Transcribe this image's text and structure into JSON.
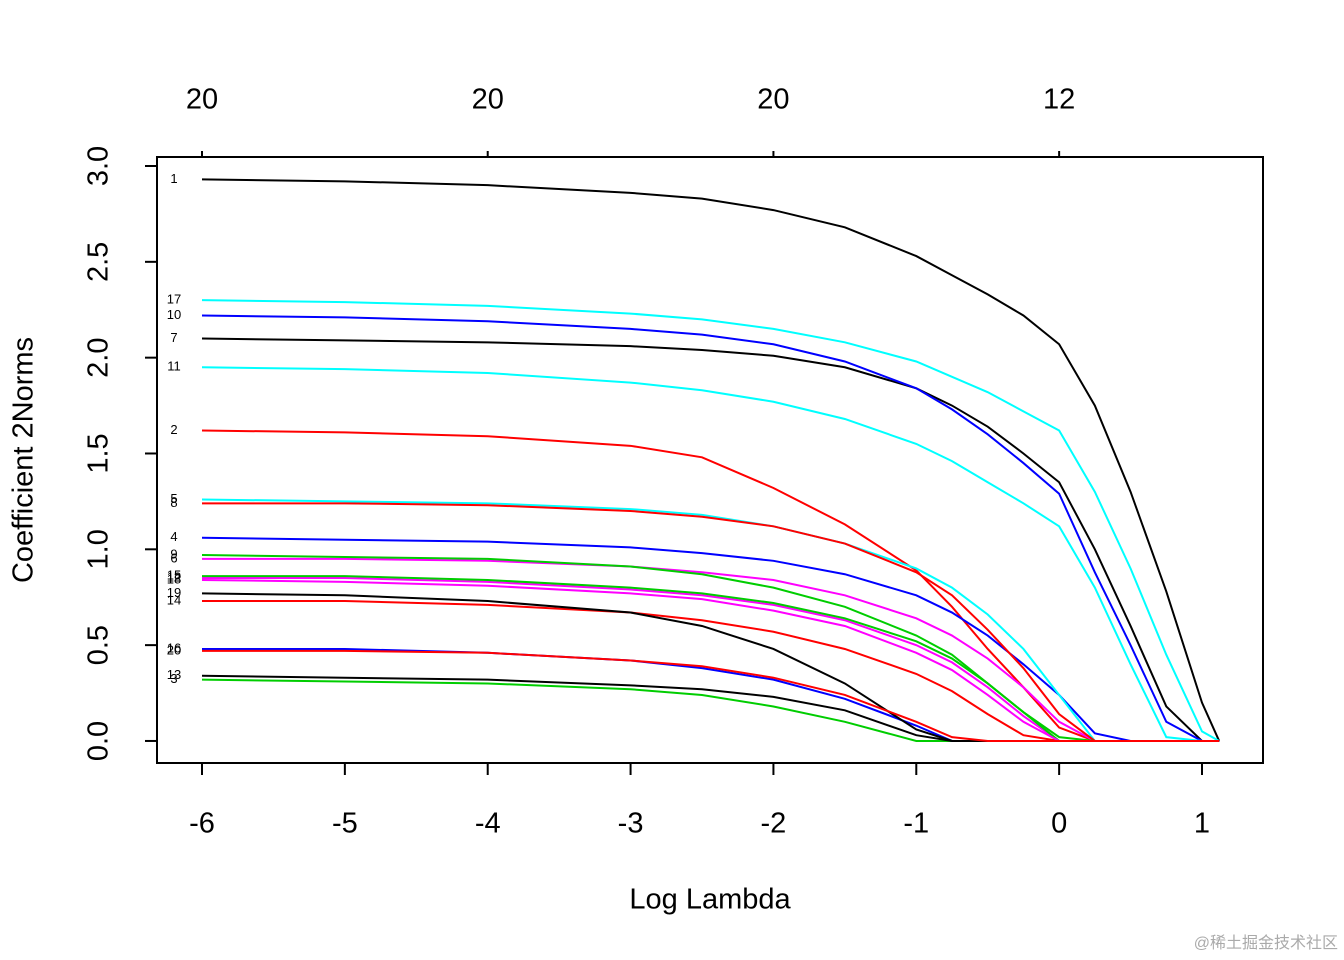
{
  "chart_data": {
    "type": "line",
    "xlabel": "Log Lambda",
    "ylabel": "Coefficient 2Norms",
    "x": [
      -6,
      -5,
      -4,
      -3,
      -2.5,
      -2,
      -1.5,
      -1,
      -0.75,
      -0.5,
      -0.25,
      0,
      0.25,
      0.5,
      0.75,
      1,
      1.12
    ],
    "xlim": [
      -6.315,
      1.427
    ],
    "ylim": [
      -0.115,
      3.047
    ],
    "xticks": [
      -6,
      -5,
      -4,
      -3,
      -2,
      -1,
      0,
      1
    ],
    "yticks": [
      {
        "value": 0,
        "label": "0.0"
      },
      0.5,
      {
        "value": 1,
        "label": "1.0"
      },
      1.5,
      {
        "value": 2,
        "label": "2.0"
      },
      2.5,
      {
        "value": 3,
        "label": "3.0"
      }
    ],
    "top_ticks": [
      {
        "value": -6,
        "label": "20"
      },
      {
        "value": -4,
        "label": "20"
      },
      {
        "value": -2,
        "label": "20"
      },
      {
        "value": 0,
        "label": "12"
      }
    ],
    "series": [
      {
        "name": "1",
        "color": "#000000",
        "values": [
          2.93,
          2.92,
          2.9,
          2.86,
          2.83,
          2.77,
          2.68,
          2.53,
          2.43,
          2.33,
          2.22,
          2.07,
          1.75,
          1.3,
          0.78,
          0.2,
          0
        ]
      },
      {
        "name": "2",
        "color": "#ff0000",
        "values": [
          1.62,
          1.61,
          1.59,
          1.54,
          1.48,
          1.32,
          1.13,
          0.89,
          0.7,
          0.48,
          0.28,
          0.07,
          0,
          0,
          0,
          0,
          0
        ]
      },
      {
        "name": "3",
        "color": "#00cd00",
        "values": [
          0.32,
          0.31,
          0.3,
          0.27,
          0.24,
          0.18,
          0.1,
          0,
          0,
          0,
          0,
          0,
          0,
          0,
          0,
          0,
          0
        ]
      },
      {
        "name": "4",
        "color": "#0000ff",
        "values": [
          1.06,
          1.05,
          1.04,
          1.01,
          0.98,
          0.94,
          0.87,
          0.76,
          0.67,
          0.55,
          0.4,
          0.24,
          0.04,
          0,
          0,
          0,
          0
        ]
      },
      {
        "name": "5",
        "color": "#00ffff",
        "values": [
          1.26,
          1.25,
          1.24,
          1.21,
          1.18,
          1.12,
          1.03,
          0.9,
          0.8,
          0.66,
          0.48,
          0.24,
          0,
          0,
          0,
          0,
          0
        ]
      },
      {
        "name": "6",
        "color": "#ff00ff",
        "values": [
          0.95,
          0.95,
          0.94,
          0.91,
          0.88,
          0.84,
          0.76,
          0.64,
          0.55,
          0.43,
          0.28,
          0.1,
          0,
          0,
          0,
          0,
          0
        ]
      },
      {
        "name": "7",
        "color": "#000000",
        "values": [
          2.1,
          2.09,
          2.08,
          2.06,
          2.04,
          2.01,
          1.95,
          1.84,
          1.75,
          1.64,
          1.5,
          1.35,
          1.0,
          0.6,
          0.18,
          0,
          0
        ]
      },
      {
        "name": "8",
        "color": "#ff0000",
        "values": [
          1.24,
          1.24,
          1.23,
          1.2,
          1.17,
          1.12,
          1.03,
          0.88,
          0.76,
          0.58,
          0.38,
          0.14,
          0,
          0,
          0,
          0,
          0
        ]
      },
      {
        "name": "9",
        "color": "#00cd00",
        "values": [
          0.97,
          0.96,
          0.95,
          0.91,
          0.87,
          0.8,
          0.7,
          0.55,
          0.45,
          0.3,
          0.15,
          0.02,
          0,
          0,
          0,
          0,
          0
        ]
      },
      {
        "name": "10",
        "color": "#0000ff",
        "values": [
          2.22,
          2.21,
          2.19,
          2.15,
          2.12,
          2.07,
          1.98,
          1.84,
          1.73,
          1.6,
          1.45,
          1.29,
          0.88,
          0.5,
          0.1,
          0,
          0
        ]
      },
      {
        "name": "11",
        "color": "#00ffff",
        "values": [
          1.95,
          1.94,
          1.92,
          1.87,
          1.83,
          1.77,
          1.68,
          1.55,
          1.46,
          1.35,
          1.24,
          1.12,
          0.8,
          0.4,
          0.02,
          0,
          0
        ]
      },
      {
        "name": "12",
        "color": "#ff00ff",
        "values": [
          0.85,
          0.85,
          0.83,
          0.79,
          0.76,
          0.71,
          0.63,
          0.5,
          0.41,
          0.28,
          0.13,
          0,
          0,
          0,
          0,
          0,
          0
        ]
      },
      {
        "name": "13",
        "color": "#000000",
        "values": [
          0.34,
          0.33,
          0.32,
          0.29,
          0.27,
          0.23,
          0.16,
          0.03,
          0,
          0,
          0,
          0,
          0,
          0,
          0,
          0,
          0
        ]
      },
      {
        "name": "14",
        "color": "#ff0000",
        "values": [
          0.73,
          0.73,
          0.71,
          0.67,
          0.63,
          0.57,
          0.48,
          0.35,
          0.26,
          0.14,
          0.03,
          0,
          0,
          0,
          0,
          0,
          0
        ]
      },
      {
        "name": "15",
        "color": "#00cd00",
        "values": [
          0.86,
          0.86,
          0.84,
          0.8,
          0.77,
          0.72,
          0.64,
          0.52,
          0.43,
          0.3,
          0.15,
          0,
          0,
          0,
          0,
          0,
          0
        ]
      },
      {
        "name": "16",
        "color": "#0000ff",
        "values": [
          0.48,
          0.48,
          0.46,
          0.42,
          0.38,
          0.32,
          0.22,
          0.08,
          0,
          0,
          0,
          0,
          0,
          0,
          0,
          0,
          0
        ]
      },
      {
        "name": "17",
        "color": "#00ffff",
        "values": [
          2.3,
          2.29,
          2.27,
          2.23,
          2.2,
          2.15,
          2.08,
          1.98,
          1.9,
          1.82,
          1.72,
          1.62,
          1.3,
          0.9,
          0.45,
          0.05,
          0
        ]
      },
      {
        "name": "18",
        "color": "#ff00ff",
        "values": [
          0.84,
          0.83,
          0.81,
          0.77,
          0.74,
          0.68,
          0.6,
          0.46,
          0.37,
          0.24,
          0.1,
          0,
          0,
          0,
          0,
          0,
          0
        ]
      },
      {
        "name": "19",
        "color": "#000000",
        "values": [
          0.77,
          0.76,
          0.73,
          0.67,
          0.6,
          0.48,
          0.3,
          0.06,
          0,
          0,
          0,
          0,
          0,
          0,
          0,
          0,
          0
        ]
      },
      {
        "name": "20",
        "color": "#ff0000",
        "values": [
          0.47,
          0.47,
          0.46,
          0.42,
          0.39,
          0.33,
          0.24,
          0.1,
          0.02,
          0,
          0,
          0,
          0,
          0,
          0,
          0,
          0
        ]
      }
    ]
  },
  "watermark": "@稀土掘金技术社区"
}
